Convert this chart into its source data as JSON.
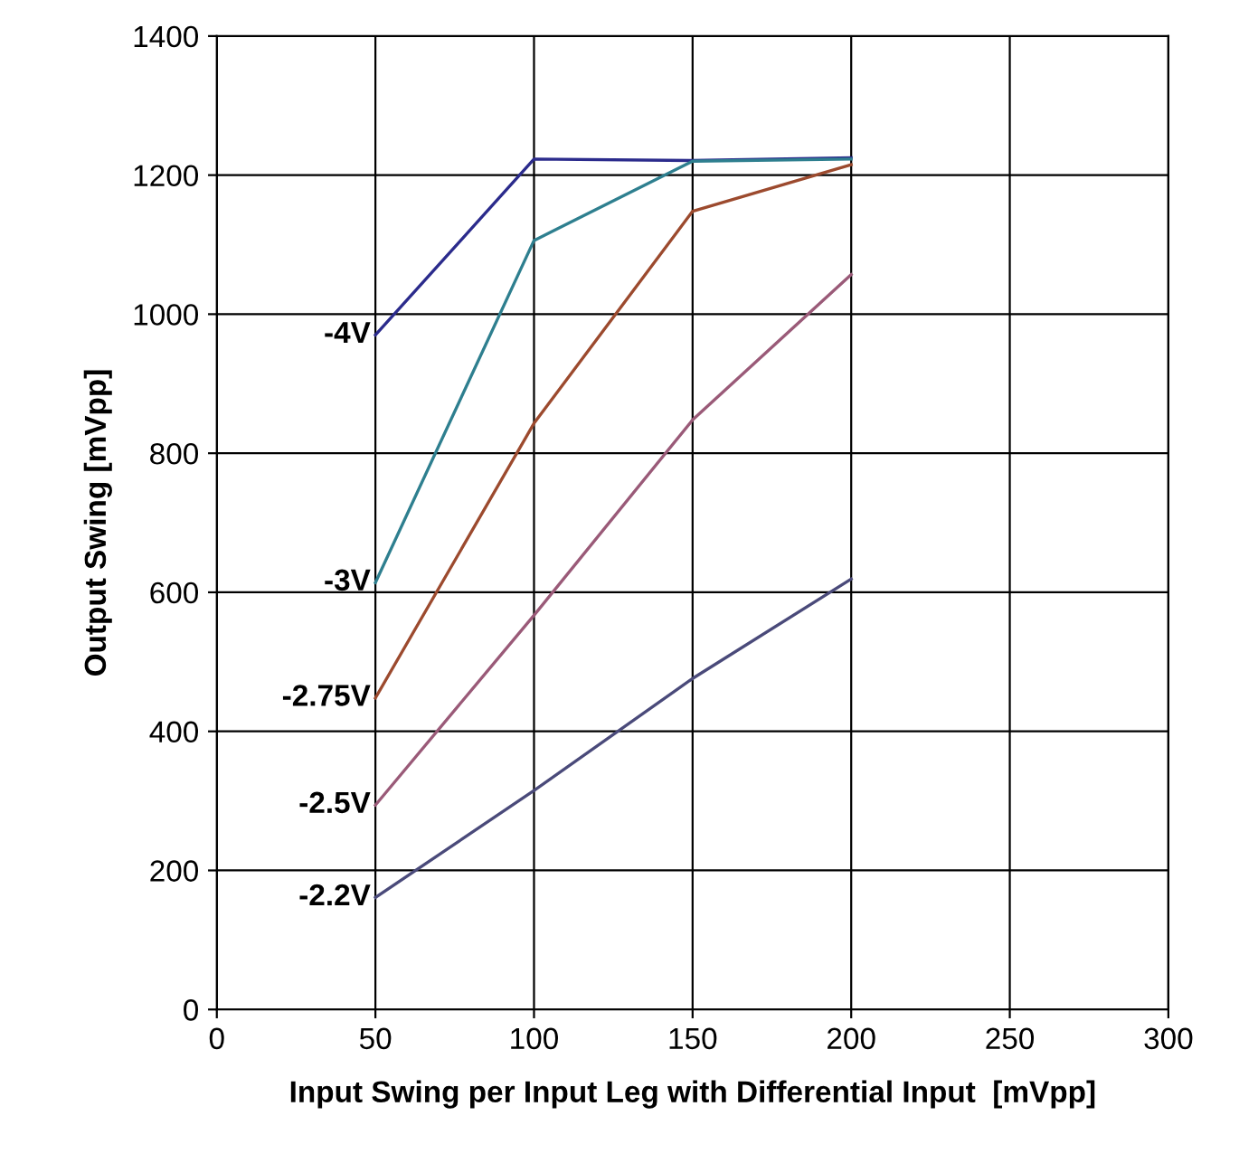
{
  "chart_data": {
    "type": "line",
    "xlabel": "Input Swing per Input Leg with Differential Input  [mVpp]",
    "ylabel": "Output Swing [mVpp]",
    "x": [
      50,
      100,
      150,
      200
    ],
    "series": [
      {
        "name": "-4V",
        "color": "#2b2b8c",
        "values": [
          970,
          1223,
          1221,
          1225
        ]
      },
      {
        "name": "-3V",
        "color": "#2e7f8f",
        "values": [
          614,
          1106,
          1220,
          1223
        ]
      },
      {
        "name": "-2.75V",
        "color": "#9c4a2e",
        "values": [
          448,
          843,
          1148,
          1215
        ]
      },
      {
        "name": "-2.5V",
        "color": "#9a5a78",
        "values": [
          294,
          567,
          848,
          1057
        ]
      },
      {
        "name": "-2.2V",
        "color": "#4a4a7a",
        "values": [
          161,
          315,
          476,
          619
        ]
      }
    ],
    "xlim": [
      0,
      300
    ],
    "xticks": [
      0,
      50,
      100,
      150,
      200,
      250,
      300
    ],
    "ylim": [
      0,
      1400
    ],
    "yticks": [
      0,
      200,
      400,
      600,
      800,
      1000,
      1200,
      1400
    ],
    "grid": true,
    "legend": false,
    "marker": "none",
    "line_style": "solid"
  }
}
